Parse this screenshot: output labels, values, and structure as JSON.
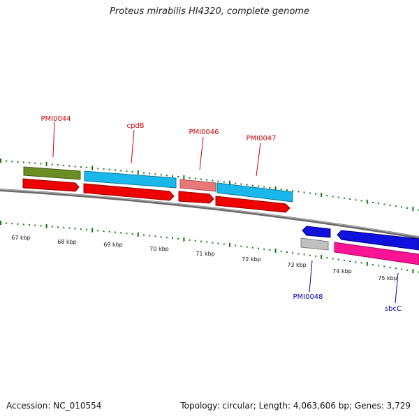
{
  "title": "Proteus mirabilis HI4320, complete genome",
  "accession": "Accession: NC_010554",
  "stats": "Topology: circular; Length: 4,063,606 bp; Genes: 3,729",
  "scale_labels": [
    "67 kbp",
    "68 kbp",
    "69 kbp",
    "70 kbp",
    "71 kbp",
    "72 kbp",
    "73 kbp",
    "74 kbp",
    "75 kbp"
  ],
  "gene_labels": {
    "pmi0044": "PMI0044",
    "cpdb": "cpdB",
    "pmi0046": "PMI0046",
    "pmi0047": "PMI0047",
    "pmi0048": "PMI0048",
    "sbcc": "sbcC"
  },
  "colors": {
    "label_top": "#cc0000",
    "label_bottom": "#0000aa",
    "backbone": "#777777",
    "tick": "#117711",
    "olive": "#6b8e23",
    "cyan": "#1ab7ea",
    "red": "#ee0000",
    "salmon": "#e67a7a",
    "blue": "#1010dd",
    "grey": "#c0c0c0",
    "magenta": "#ff1493"
  }
}
